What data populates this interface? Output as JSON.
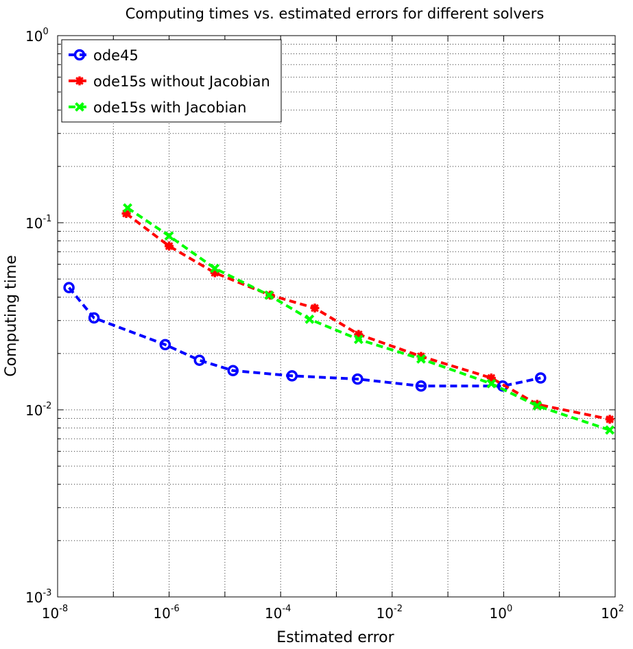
{
  "chart_data": {
    "type": "line",
    "title": "Computing times vs. estimated errors for different solvers",
    "xlabel": "Estimated error",
    "ylabel": "Computing time",
    "xscale": "log",
    "yscale": "log",
    "xlim": [
      1e-08,
      100
    ],
    "ylim": [
      0.001,
      1
    ],
    "grid": true,
    "legend_position": "top-left",
    "x_tick_labels": [
      {
        "base": "10",
        "exp": "-8"
      },
      {
        "base": "10",
        "exp": "-6"
      },
      {
        "base": "10",
        "exp": "-4"
      },
      {
        "base": "10",
        "exp": "-2"
      },
      {
        "base": "10",
        "exp": "0"
      },
      {
        "base": "10",
        "exp": "2"
      }
    ],
    "y_tick_labels": [
      {
        "base": "10",
        "exp": "-3"
      },
      {
        "base": "10",
        "exp": "-2"
      },
      {
        "base": "10",
        "exp": "-1"
      },
      {
        "base": "10",
        "exp": "0"
      }
    ],
    "series": [
      {
        "name": "ode45",
        "color": "#0000ff",
        "marker": "circle",
        "x": [
          1.6e-08,
          4.5e-08,
          8.5e-07,
          3.5e-06,
          1.4e-05,
          0.00016,
          0.0024,
          0.033,
          0.96,
          4.6
        ],
        "y": [
          0.045,
          0.031,
          0.0223,
          0.0184,
          0.0162,
          0.0152,
          0.0146,
          0.0134,
          0.0134,
          0.0148
        ]
      },
      {
        "name": "ode15s without Jacobian",
        "color": "#ff0000",
        "marker": "star",
        "x": [
          1.7e-07,
          1e-06,
          6.6e-06,
          6.5e-05,
          0.00041,
          0.0025,
          0.033,
          0.6,
          4,
          80
        ],
        "y": [
          0.112,
          0.075,
          0.054,
          0.041,
          0.035,
          0.0253,
          0.0193,
          0.0148,
          0.0107,
          0.0089
        ]
      },
      {
        "name": "ode15s with Jacobian",
        "color": "#00ff00",
        "marker": "x",
        "x": [
          1.8e-07,
          1e-06,
          6.6e-06,
          6.2e-05,
          0.00033,
          0.0025,
          0.033,
          0.6,
          4,
          80
        ],
        "y": [
          0.12,
          0.085,
          0.057,
          0.041,
          0.0305,
          0.0238,
          0.0187,
          0.0138,
          0.0105,
          0.0078
        ]
      }
    ]
  }
}
